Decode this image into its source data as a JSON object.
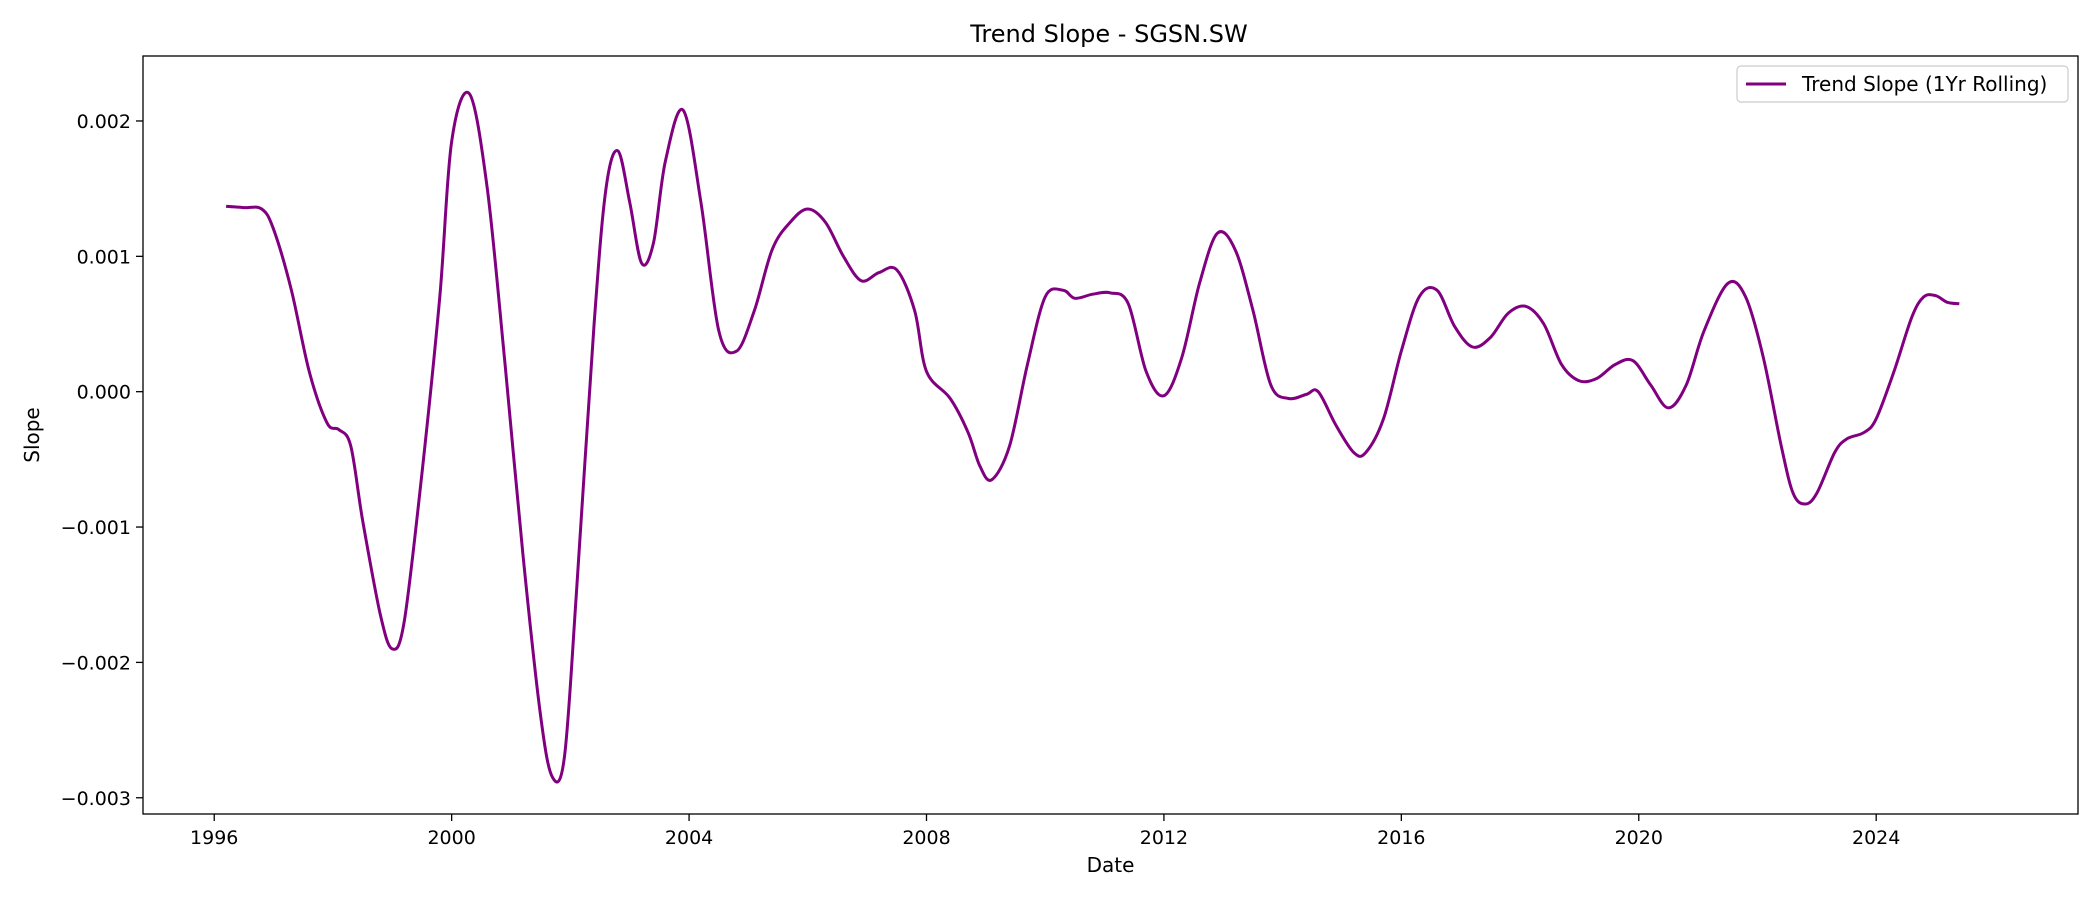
{
  "chart_data": {
    "type": "line",
    "title": "Trend Slope - SGSN.SW",
    "xlabel": "Date",
    "ylabel": "Slope",
    "xlim": [
      1994.8,
      2027.4
    ],
    "ylim": [
      -0.00312,
      0.00248
    ],
    "x_ticks": [
      1996,
      2000,
      2004,
      2008,
      2012,
      2016,
      2020,
      2024
    ],
    "x_tick_labels": [
      "1996",
      "2000",
      "2004",
      "2008",
      "2012",
      "2016",
      "2020",
      "2024"
    ],
    "y_ticks": [
      -0.003,
      -0.002,
      -0.001,
      0.0,
      0.001,
      0.002
    ],
    "y_tick_labels": [
      "−0.003",
      "−0.002",
      "−0.001",
      "0.000",
      "0.001",
      "0.002"
    ],
    "grid": false,
    "legend": {
      "position": "upper right",
      "entries": [
        "Trend Slope (1Yr Rolling)"
      ]
    },
    "series": [
      {
        "name": "Trend Slope (1Yr Rolling)",
        "color": "#800080",
        "x": [
          1996.2,
          1996.5,
          1996.8,
          1997.0,
          1997.3,
          1997.6,
          1997.9,
          1998.1,
          1998.3,
          1998.5,
          1998.8,
          1999.0,
          1999.2,
          1999.5,
          1999.8,
          2000.0,
          2000.3,
          2000.6,
          2000.9,
          2001.2,
          2001.5,
          2001.7,
          2001.9,
          2002.1,
          2002.4,
          2002.6,
          2002.8,
          2003.0,
          2003.2,
          2003.4,
          2003.6,
          2003.9,
          2004.2,
          2004.5,
          2004.8,
          2005.1,
          2005.4,
          2005.7,
          2006.0,
          2006.3,
          2006.6,
          2006.9,
          2007.2,
          2007.5,
          2007.8,
          2008.0,
          2008.4,
          2008.7,
          2008.9,
          2009.1,
          2009.4,
          2009.7,
          2010.0,
          2010.3,
          2010.5,
          2010.8,
          2011.1,
          2011.4,
          2011.7,
          2012.0,
          2012.3,
          2012.6,
          2012.9,
          2013.2,
          2013.5,
          2013.8,
          2014.1,
          2014.4,
          2014.6,
          2014.9,
          2015.2,
          2015.4,
          2015.7,
          2016.0,
          2016.3,
          2016.6,
          2016.9,
          2017.2,
          2017.5,
          2017.8,
          2018.1,
          2018.4,
          2018.7,
          2019.0,
          2019.3,
          2019.6,
          2019.9,
          2020.2,
          2020.5,
          2020.8,
          2021.1,
          2021.5,
          2021.8,
          2022.1,
          2022.4,
          2022.6,
          2022.8,
          2023.0,
          2023.3,
          2023.5,
          2023.8,
          2024.0,
          2024.3,
          2024.6,
          2024.8,
          2025.0,
          2025.2,
          2025.4
        ],
        "y": [
          0.00137,
          0.00136,
          0.00135,
          0.0012,
          0.00075,
          0.00015,
          -0.00023,
          -0.00028,
          -0.0004,
          -0.00095,
          -0.00165,
          -0.0019,
          -0.0017,
          -0.0006,
          0.0007,
          0.00185,
          0.0022,
          0.0015,
          0.0002,
          -0.0012,
          -0.0024,
          -0.00285,
          -0.0027,
          -0.0015,
          0.0005,
          0.0015,
          0.00178,
          0.0014,
          0.00095,
          0.0011,
          0.0017,
          0.00208,
          0.0014,
          0.00045,
          0.0003,
          0.0006,
          0.00105,
          0.00125,
          0.00135,
          0.00125,
          0.001,
          0.00082,
          0.00088,
          0.0009,
          0.0006,
          0.00015,
          -5e-05,
          -0.0003,
          -0.00055,
          -0.00065,
          -0.0004,
          0.0002,
          0.0007,
          0.00075,
          0.00069,
          0.00072,
          0.00073,
          0.00065,
          0.00015,
          -3e-05,
          0.00025,
          0.0008,
          0.00117,
          0.00105,
          0.0006,
          5e-05,
          -5e-05,
          -2e-05,
          0.0,
          -0.00025,
          -0.00045,
          -0.00045,
          -0.0002,
          0.0003,
          0.0007,
          0.00075,
          0.00048,
          0.00033,
          0.0004,
          0.00058,
          0.00063,
          0.0005,
          0.0002,
          8e-05,
          0.0001,
          0.0002,
          0.00023,
          5e-05,
          -0.00012,
          5e-05,
          0.00045,
          0.0008,
          0.0007,
          0.00025,
          -0.0004,
          -0.00075,
          -0.00083,
          -0.00075,
          -0.00045,
          -0.00035,
          -0.0003,
          -0.0002,
          0.00015,
          0.00055,
          0.0007,
          0.00071,
          0.00066,
          0.00065
        ]
      }
    ]
  }
}
